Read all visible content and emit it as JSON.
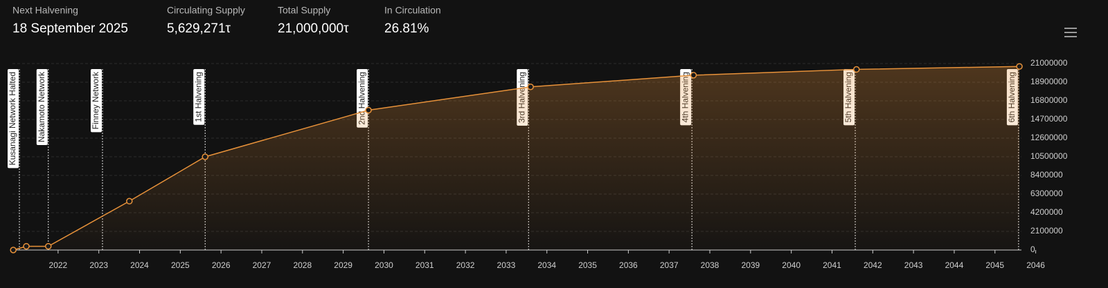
{
  "stats": [
    {
      "label": "Next Halvening",
      "value": "18 September 2025"
    },
    {
      "label": "Circulating Supply",
      "value": "5,629,271τ"
    },
    {
      "label": "Total Supply",
      "value": "21,000,000τ"
    },
    {
      "label": "In Circulation",
      "value": "26.81%"
    }
  ],
  "chart_data": {
    "type": "area",
    "x": [
      2020.9,
      2021.22,
      2021.76,
      2023.75,
      2025.61,
      2029.62,
      2033.6,
      2037.6,
      2041.6,
      2045.6
    ],
    "series": [
      {
        "color": "#e8923a",
        "values": [
          0,
          420000,
          420000,
          5500000,
          10500000,
          15750000,
          18375000,
          19687500,
          20343750,
          20671875
        ]
      }
    ],
    "xlim": [
      2020.88,
      2045.65
    ],
    "xticks": [
      2022,
      2023,
      2024,
      2025,
      2026,
      2027,
      2028,
      2029,
      2030,
      2031,
      2032,
      2033,
      2034,
      2035,
      2036,
      2037,
      2038,
      2039,
      2040,
      2041,
      2042,
      2043,
      2044,
      2045,
      2046
    ],
    "ylim": [
      0,
      21000000
    ],
    "yticks": [
      0,
      2100000,
      4200000,
      6300000,
      8400000,
      10500000,
      12600000,
      14700000,
      16800000,
      18900000,
      21000000
    ],
    "grid": true,
    "annotations": [
      {
        "label": "Kusanagi Network Halted",
        "x": 2021.05
      },
      {
        "label": "Nakamoto Network",
        "x": 2021.76
      },
      {
        "label": "Finney Network",
        "x": 2023.09
      },
      {
        "label": "1st Halvening",
        "x": 2025.61
      },
      {
        "label": "2nd Halvening",
        "x": 2029.62
      },
      {
        "label": "3rd Halvening",
        "x": 2033.55
      },
      {
        "label": "4th Halvening",
        "x": 2037.56
      },
      {
        "label": "5th Halvening",
        "x": 2041.57
      },
      {
        "label": "6th Halvening",
        "x": 2045.58
      }
    ]
  }
}
